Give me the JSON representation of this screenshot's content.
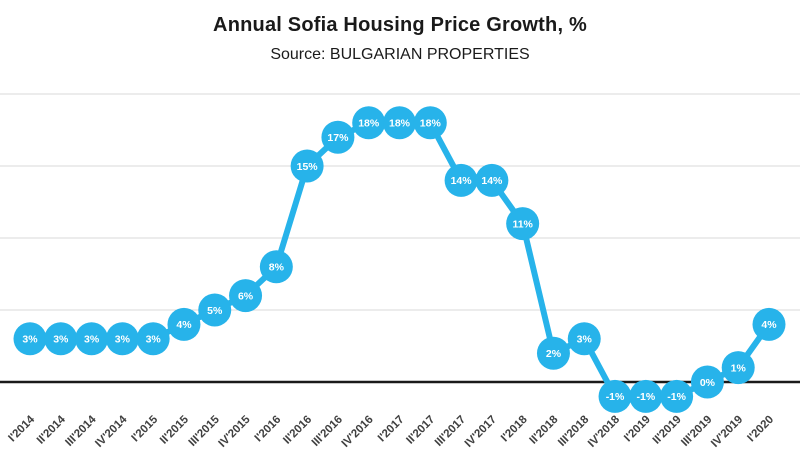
{
  "header": {
    "title": "Annual Sofia Housing Price Growth, %",
    "subtitle": "Source: BULGARIAN PROPERTIES"
  },
  "colors": {
    "marker": "#27b3ea",
    "line": "#27b3ea",
    "marker_label": "#ffffff",
    "grid": "#d9d9d9",
    "zero_line": "#1a1a1a",
    "tick_label": "#404040",
    "title": "#1a1a1a"
  },
  "chart_data": {
    "type": "line",
    "title": "Annual Sofia Housing Price Growth, %",
    "subtitle": "Source: BULGARIAN PROPERTIES",
    "xlabel": "",
    "ylabel": "",
    "ylim": [
      -5,
      20
    ],
    "grid": true,
    "legend": "none",
    "grid_values": [
      20,
      15,
      10,
      5,
      0
    ],
    "categories": [
      "I'2014",
      "II'2014",
      "III'2014",
      "IV'2014",
      "I'2015",
      "II'2015",
      "III'2015",
      "IV'2015",
      "I'2016",
      "II'2016",
      "III'2016",
      "IV'2016",
      "I'2017",
      "II'2017",
      "III'2017",
      "IV'2017",
      "I'2018",
      "II'2018",
      "III'2018",
      "IV'2018",
      "I'2019",
      "II'2019",
      "III'2019",
      "IV'2019",
      "I'2020"
    ],
    "values": [
      3,
      3,
      3,
      3,
      3,
      4,
      5,
      6,
      8,
      15,
      17,
      18,
      18,
      18,
      14,
      14,
      11,
      2,
      3,
      -1,
      -1,
      -1,
      0,
      1,
      4
    ],
    "point_labels": [
      "3%",
      "3%",
      "3%",
      "3%",
      "3%",
      "4%",
      "5%",
      "6%",
      "8%",
      "15%",
      "17%",
      "18%",
      "18%",
      "18%",
      "14%",
      "14%",
      "11%",
      "2%",
      "3%",
      "-1%",
      "-1%",
      "-1%",
      "0%",
      "1%",
      "4%"
    ]
  }
}
